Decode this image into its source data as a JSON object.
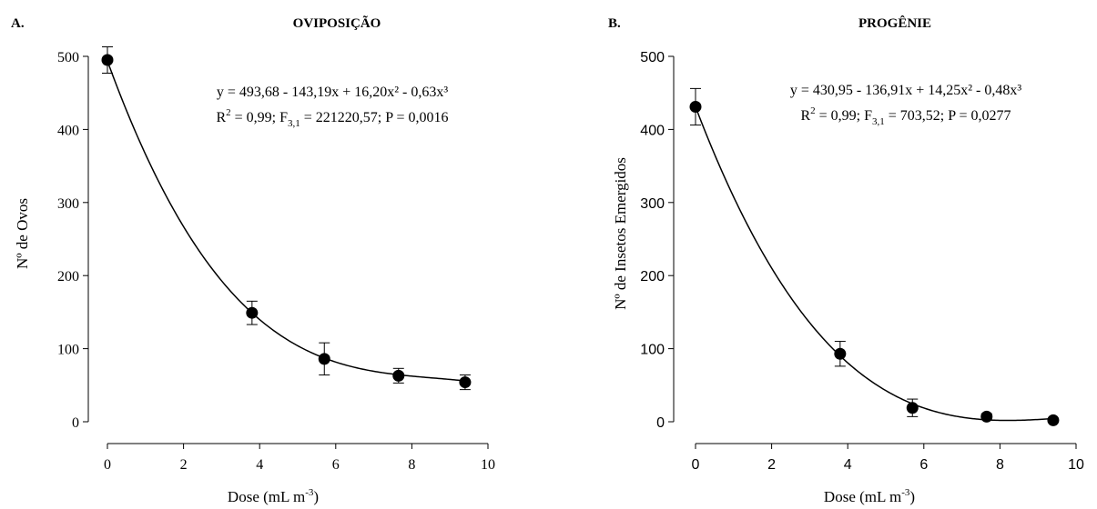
{
  "chart_data": [
    {
      "type": "scatter",
      "panel_label": "A.",
      "title": "OVIPOSIÇÃO",
      "ylabel": "Nº de Ovos",
      "xlabel": {
        "main": "Dose (mL m",
        "sup": "-3",
        "close": ")"
      },
      "xlim": [
        0,
        10
      ],
      "ylim": [
        0,
        500
      ],
      "xticks": [
        "0",
        "2",
        "4",
        "6",
        "8",
        "10"
      ],
      "yticks": [
        "0",
        "100",
        "200",
        "300",
        "400",
        "500"
      ],
      "tick_font": "serif",
      "x": [
        0,
        3.8,
        5.7,
        7.65,
        9.4
      ],
      "y": [
        495,
        149,
        86,
        63,
        54
      ],
      "error": [
        18,
        16,
        22,
        10,
        10
      ],
      "fit": {
        "coefficients": [
          493.68,
          -143.19,
          16.2,
          -0.63
        ]
      },
      "equation": "y = 493,68 - 143,19x + 16,20x² - 0,63x³",
      "stats": {
        "r_prefix": "R",
        "r_sup": "2",
        "r_val": " = 0,99; F",
        "f_sub": "3,1",
        "f_val": " = 221220,57; P = 0,0016"
      }
    },
    {
      "type": "scatter",
      "panel_label": "B.",
      "title": "PROGÊNIE",
      "ylabel": "Nº de Insetos Emergidos",
      "xlabel": {
        "main": "Dose (mL m",
        "sup": "-3",
        "close": ")"
      },
      "xlim": [
        0,
        10
      ],
      "ylim": [
        0,
        500
      ],
      "xticks": [
        "0",
        "2",
        "4",
        "6",
        "8",
        "10"
      ],
      "yticks": [
        "0",
        "100",
        "200",
        "300",
        "400",
        "500"
      ],
      "tick_font": "sans",
      "x": [
        0,
        3.8,
        5.7,
        7.65,
        9.4
      ],
      "y": [
        431,
        93,
        19,
        7,
        2
      ],
      "error": [
        25,
        17,
        12,
        4,
        2
      ],
      "fit": {
        "coefficients": [
          430.95,
          -136.91,
          14.25,
          -0.48
        ]
      },
      "equation": "y = 430,95 - 136,91x + 14,25x² - 0,48x³",
      "stats": {
        "r_prefix": "R",
        "r_sup": "2",
        "r_val": " = 0,99; F",
        "f_sub": "3,1",
        "f_val": " = 703,52; P = 0,0277"
      }
    }
  ]
}
